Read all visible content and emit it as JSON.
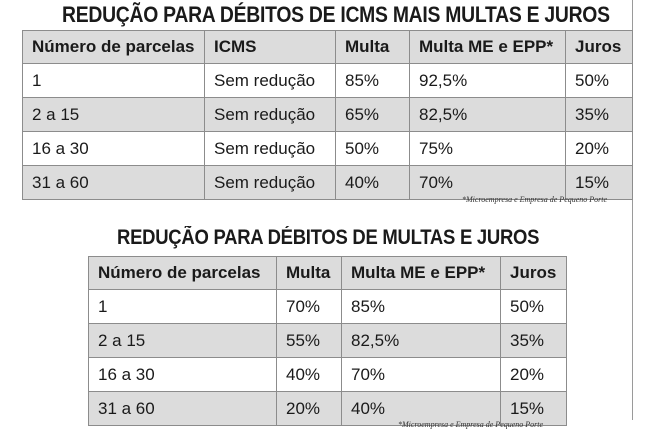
{
  "table1": {
    "title": "REDUÇÃO PARA DÉBITOS DE ICMS MAIS MULTAS E JUROS",
    "headers": [
      "Número de parcelas",
      "ICMS",
      "Multa",
      "Multa ME e EPP*",
      "Juros"
    ],
    "rows": [
      [
        "1",
        "Sem redução",
        "85%",
        "92,5%",
        "50%"
      ],
      [
        "2 a 15",
        "Sem redução",
        "65%",
        "82,5%",
        "35%"
      ],
      [
        "16 a 30",
        "Sem redução",
        "50%",
        "75%",
        "20%"
      ],
      [
        "31 a 60",
        "Sem redução",
        "40%",
        "70%",
        "15%"
      ]
    ],
    "footnote": "*Microempresa e Empresa de Pequeno Porte"
  },
  "table2": {
    "title": "REDUÇÃO PARA DÉBITOS DE MULTAS E JUROS",
    "headers": [
      "Número de parcelas",
      "Multa",
      "Multa ME e EPP*",
      "Juros"
    ],
    "rows": [
      [
        "1",
        "70%",
        "85%",
        "50%"
      ],
      [
        "2 a 15",
        "55%",
        "82,5%",
        "35%"
      ],
      [
        "16 a 30",
        "40%",
        "70%",
        "20%"
      ],
      [
        "31 a 60",
        "20%",
        "40%",
        "15%"
      ]
    ],
    "footnote": "*Microempresa e Empresa de Pequeno Porte"
  },
  "colors": {
    "shaded_row": "#dcdcdc",
    "white_row": "#ffffff",
    "border": "#8c8c8c",
    "text": "#1a1a1a"
  }
}
